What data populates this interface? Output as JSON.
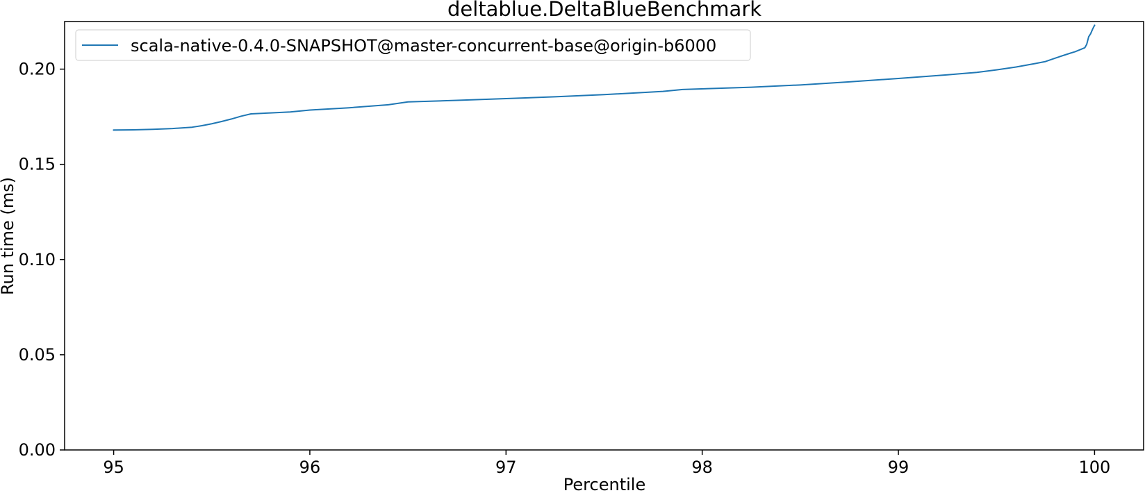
{
  "chart_data": {
    "type": "line",
    "title": "deltablue.DeltaBlueBenchmark",
    "xlabel": "Percentile",
    "ylabel": "Run time (ms)",
    "xlim": [
      94.75,
      100.25
    ],
    "ylim": [
      0.0,
      0.225
    ],
    "xticks": [
      95,
      96,
      97,
      98,
      99,
      100
    ],
    "xtick_labels": [
      "95",
      "96",
      "97",
      "98",
      "99",
      "100"
    ],
    "yticks": [
      0.0,
      0.05,
      0.1,
      0.15,
      0.2
    ],
    "ytick_labels": [
      "0.00",
      "0.05",
      "0.10",
      "0.15",
      "0.20"
    ],
    "grid": false,
    "legend_position": "top-left",
    "colors": {
      "series": "#1f77b4",
      "axis": "#000000",
      "legend_border": "#cccccc"
    },
    "series": [
      {
        "name": "scala-native-0.4.0-SNAPSHOT@master-concurrent-base@origin-b6000",
        "x": [
          95.0,
          95.1,
          95.2,
          95.3,
          95.4,
          95.45,
          95.5,
          95.55,
          95.6,
          95.65,
          95.7,
          95.8,
          95.9,
          96.0,
          96.2,
          96.4,
          96.5,
          96.75,
          97.0,
          97.25,
          97.5,
          97.8,
          97.9,
          98.25,
          98.5,
          98.75,
          99.0,
          99.25,
          99.4,
          99.5,
          99.6,
          99.7,
          99.75,
          99.8,
          99.85,
          99.88,
          99.9,
          99.95,
          99.96,
          99.97,
          99.98,
          99.99,
          100.0
        ],
        "values": [
          0.168,
          0.1681,
          0.1684,
          0.1688,
          0.1695,
          0.1703,
          0.1713,
          0.1725,
          0.1738,
          0.1753,
          0.1765,
          0.177,
          0.1775,
          0.1785,
          0.1797,
          0.1813,
          0.1828,
          0.1836,
          0.1845,
          0.1855,
          0.1866,
          0.1883,
          0.1893,
          0.1905,
          0.1917,
          0.1933,
          0.1951,
          0.197,
          0.1983,
          0.1996,
          0.2011,
          0.203,
          0.204,
          0.2058,
          0.2075,
          0.2085,
          0.2091,
          0.2112,
          0.213,
          0.217,
          0.2186,
          0.221,
          0.223
        ]
      }
    ]
  }
}
